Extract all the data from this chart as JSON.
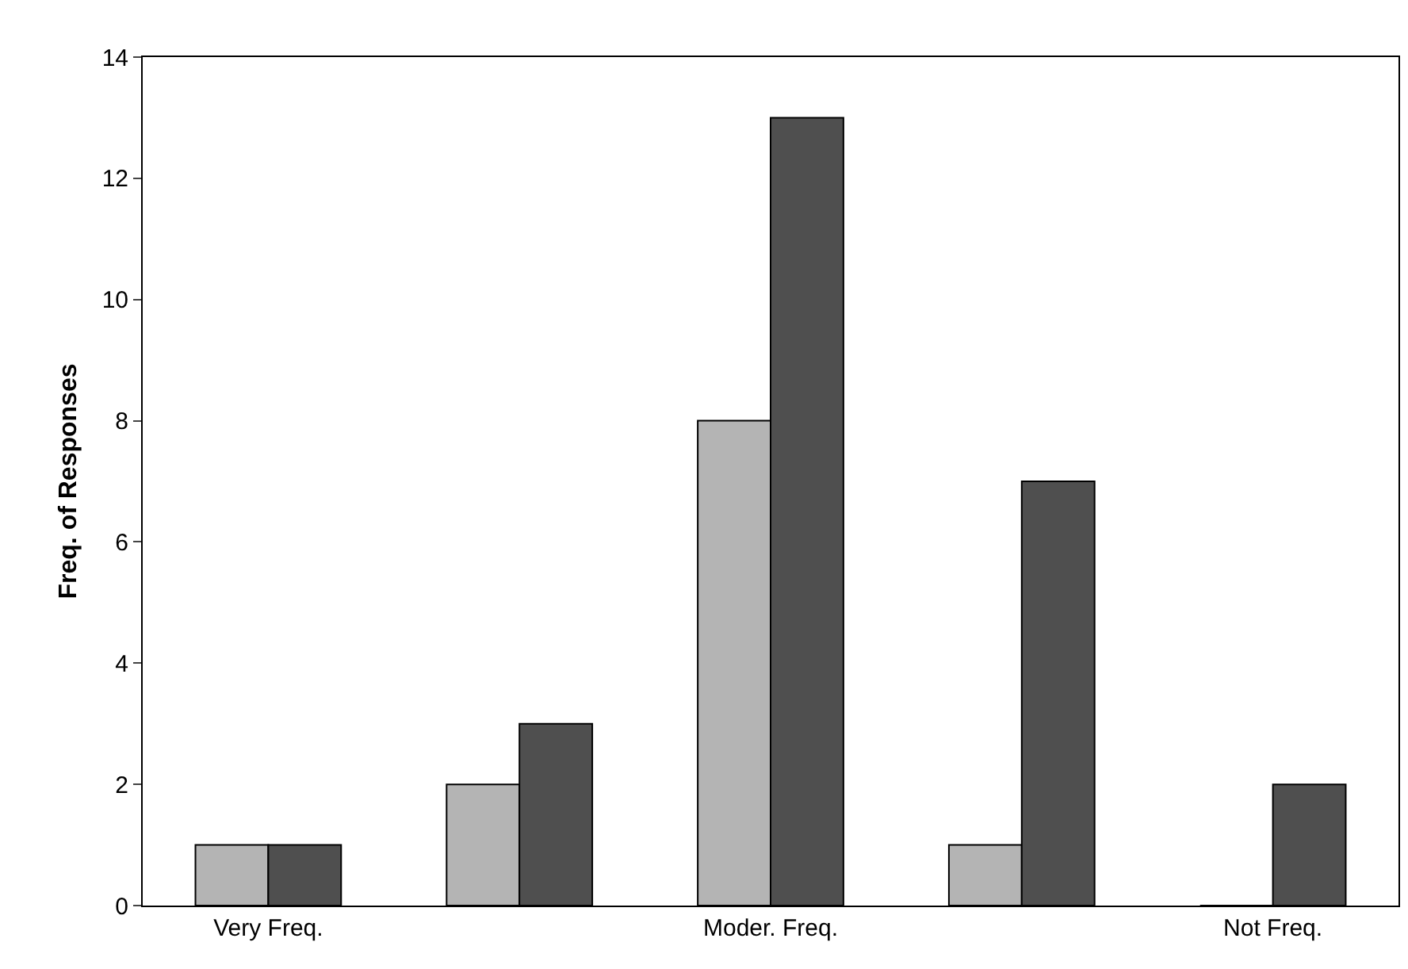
{
  "chart_data": {
    "type": "bar",
    "ylabel": "Freq. of Responses",
    "categories": [
      "Very Freq.",
      null,
      "Moder. Freq.",
      null,
      "Not Freq."
    ],
    "series": [
      {
        "color": "#b4b4b4",
        "values": [
          1,
          2,
          8,
          1,
          0
        ]
      },
      {
        "color": "#4f4f4f",
        "values": [
          1,
          3,
          13,
          7,
          2
        ]
      }
    ],
    "ylim": [
      0,
      14
    ],
    "yticks": [
      0,
      2,
      4,
      6,
      8,
      10,
      12,
      14
    ],
    "grid": false
  }
}
